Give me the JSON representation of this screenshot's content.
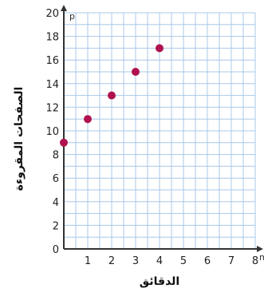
{
  "chart_data": {
    "type": "scatter",
    "xlabel": "الدقائق",
    "ylabel": "الصفحات المقروءة",
    "x_var": "m",
    "y_var": "p",
    "xlim": [
      0,
      8
    ],
    "ylim": [
      0,
      20
    ],
    "x_ticks": [
      "1",
      "2",
      "3",
      "4",
      "5",
      "6",
      "7",
      "8"
    ],
    "y_ticks": [
      "0",
      "2",
      "4",
      "6",
      "8",
      "10",
      "12",
      "14",
      "16",
      "18",
      "20"
    ],
    "grid": true,
    "point_color": "#b0124f",
    "grid_color": "#a9c8e8",
    "axis_color": "#333333",
    "points": [
      {
        "x": 0,
        "y": 9
      },
      {
        "x": 1,
        "y": 11
      },
      {
        "x": 2,
        "y": 13
      },
      {
        "x": 3,
        "y": 15
      },
      {
        "x": 4,
        "y": 17
      }
    ]
  }
}
